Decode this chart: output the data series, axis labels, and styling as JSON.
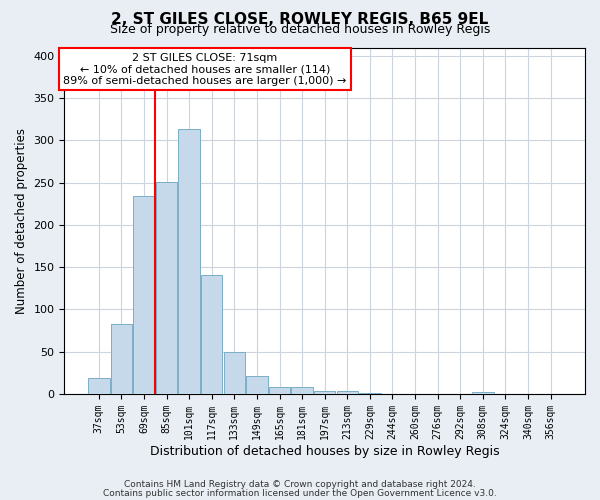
{
  "title": "2, ST GILES CLOSE, ROWLEY REGIS, B65 9EL",
  "subtitle": "Size of property relative to detached houses in Rowley Regis",
  "xlabel": "Distribution of detached houses by size in Rowley Regis",
  "ylabel": "Number of detached properties",
  "bar_color": "#c5d9ea",
  "bar_edge_color": "#7aaec8",
  "categories": [
    "37sqm",
    "53sqm",
    "69sqm",
    "85sqm",
    "101sqm",
    "117sqm",
    "133sqm",
    "149sqm",
    "165sqm",
    "181sqm",
    "197sqm",
    "213sqm",
    "229sqm",
    "244sqm",
    "260sqm",
    "276sqm",
    "292sqm",
    "308sqm",
    "324sqm",
    "340sqm",
    "356sqm"
  ],
  "values": [
    19,
    83,
    234,
    251,
    314,
    141,
    50,
    21,
    8,
    8,
    4,
    3,
    1,
    0,
    0,
    0,
    0,
    2,
    0,
    0,
    0
  ],
  "ylim": [
    0,
    410
  ],
  "yticks": [
    0,
    50,
    100,
    150,
    200,
    250,
    300,
    350,
    400
  ],
  "annotation_text_line1": "2 ST GILES CLOSE: 71sqm",
  "annotation_text_line2": "← 10% of detached houses are smaller (114)",
  "annotation_text_line3": "89% of semi-detached houses are larger (1,000) →",
  "red_line_category_index": 2,
  "footnote1": "Contains HM Land Registry data © Crown copyright and database right 2024.",
  "footnote2": "Contains public sector information licensed under the Open Government Licence v3.0.",
  "fig_bg_color": "#e8eef4",
  "plot_bg_color": "#ffffff",
  "grid_color": "#ccd5de"
}
